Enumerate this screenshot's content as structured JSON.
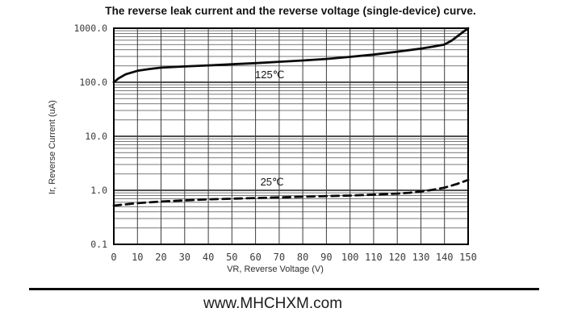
{
  "title": "The reverse leak current and the reverse voltage (single-device) curve.",
  "footer": {
    "website": "www.MHCHXM.com"
  },
  "chart_data": {
    "type": "line",
    "title": "The reverse leak current and the reverse voltage (single-device) curve.",
    "xlabel": "VR, Reverse Voltage (V)",
    "ylabel": "Ir, Reverse Current (uA)",
    "xlim": [
      0,
      150
    ],
    "ylim": [
      0.1,
      1000
    ],
    "y_scale": "log",
    "grid": true,
    "x_tick_labels": [
      "0",
      "10",
      "20",
      "30",
      "40",
      "50",
      "60",
      "70",
      "80",
      "90",
      "100",
      "110",
      "120",
      "130",
      "140",
      "150"
    ],
    "x_tick_values": [
      0,
      10,
      20,
      30,
      40,
      50,
      60,
      70,
      80,
      90,
      100,
      110,
      120,
      130,
      140,
      150
    ],
    "y_tick_labels": [
      "1000.0",
      "100.0",
      "10.0",
      "1.0",
      "0.1"
    ],
    "y_tick_values": [
      1000,
      100,
      10,
      1,
      0.1
    ],
    "series": [
      {
        "name": "125℃",
        "style": "solid",
        "color": "#0a0a0a",
        "x": [
          0,
          2,
          5,
          10,
          15,
          20,
          30,
          40,
          50,
          60,
          70,
          80,
          90,
          100,
          110,
          120,
          125,
          130,
          135,
          140,
          143,
          146,
          148,
          150
        ],
        "y": [
          100,
          118,
          140,
          163,
          176,
          186,
          196,
          205,
          215,
          226,
          239,
          253,
          270,
          295,
          325,
          368,
          393,
          420,
          455,
          500,
          590,
          740,
          860,
          1000
        ]
      },
      {
        "name": "25℃",
        "style": "dashed",
        "color": "#0a0a0a",
        "x": [
          0,
          5,
          10,
          20,
          30,
          40,
          50,
          60,
          70,
          80,
          90,
          100,
          110,
          120,
          125,
          130,
          135,
          140,
          145,
          150
        ],
        "y": [
          0.52,
          0.55,
          0.58,
          0.62,
          0.65,
          0.68,
          0.7,
          0.72,
          0.74,
          0.76,
          0.78,
          0.8,
          0.83,
          0.87,
          0.9,
          0.95,
          1.02,
          1.12,
          1.3,
          1.55
        ]
      }
    ],
    "annotations": [
      {
        "text": "125℃",
        "x": 66,
        "y": 138
      },
      {
        "text": "25℃",
        "x": 67,
        "y": 1.43
      }
    ],
    "colors": {
      "curve": "#0a0a0a",
      "grid_minor": "#4d4d4d",
      "grid_major": "#161616",
      "grid_vertical": "#3c3c3c",
      "border": "#000000",
      "tick_text": "#3b3b3b"
    }
  }
}
